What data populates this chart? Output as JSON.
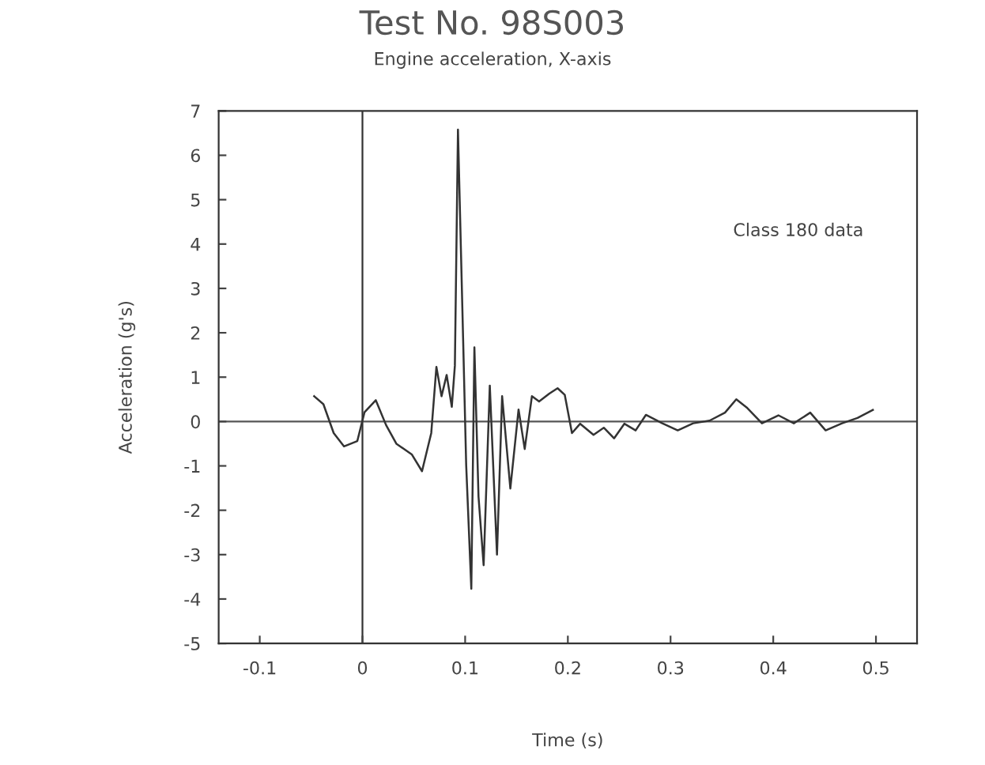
{
  "chart_data": {
    "type": "line",
    "title": "Test No. 98S003",
    "subtitle": "Engine acceleration, X-axis",
    "xlabel": "Time (s)",
    "ylabel": "Acceleration (g's)",
    "annotations": [
      "Class 180 data"
    ],
    "series": [
      {
        "color": "#333333",
        "x": [
          -0.047,
          -0.038,
          -0.028,
          -0.018,
          -0.005,
          0.002,
          0.013,
          0.023,
          0.033,
          0.048,
          0.058,
          0.067,
          0.072,
          0.077,
          0.082,
          0.087,
          0.09,
          0.093,
          0.098,
          0.101,
          0.106,
          0.109,
          0.113,
          0.118,
          0.124,
          0.131,
          0.136,
          0.144,
          0.152,
          0.158,
          0.165,
          0.172,
          0.182,
          0.19,
          0.197,
          0.204,
          0.212,
          0.225,
          0.235,
          0.245,
          0.255,
          0.266,
          0.276,
          0.292,
          0.307,
          0.322,
          0.338,
          0.353,
          0.364,
          0.374,
          0.389,
          0.405,
          0.42,
          0.436,
          0.451,
          0.467,
          0.482,
          0.497
        ],
        "values": [
          0.57,
          0.39,
          -0.26,
          -0.56,
          -0.44,
          0.21,
          0.48,
          -0.08,
          -0.5,
          -0.74,
          -1.12,
          -0.26,
          1.23,
          0.57,
          1.05,
          0.33,
          1.26,
          6.58,
          1.88,
          -0.98,
          -3.77,
          1.67,
          -1.69,
          -3.24,
          0.81,
          -3.0,
          0.57,
          -1.51,
          0.27,
          -0.62,
          0.57,
          0.45,
          0.63,
          0.75,
          0.6,
          -0.26,
          -0.05,
          -0.3,
          -0.14,
          -0.38,
          -0.05,
          -0.2,
          0.15,
          -0.04,
          -0.2,
          -0.04,
          0.02,
          0.2,
          0.5,
          0.32,
          -0.04,
          0.14,
          -0.04,
          0.2,
          -0.2,
          -0.04,
          0.08,
          0.26
        ]
      }
    ],
    "ref_lines": [
      {
        "axis": "x",
        "value": 0,
        "color": "#333333"
      },
      {
        "axis": "y",
        "value": 0,
        "color": "#555555"
      }
    ],
    "xlim": [
      -0.14,
      0.54
    ],
    "xticks": [
      -0.1,
      0,
      0.1,
      0.2,
      0.3,
      0.4,
      0.5
    ],
    "ylim": [
      -5,
      7
    ],
    "yticks": [
      -5,
      -4,
      -3,
      -2,
      -1,
      0,
      1,
      2,
      3,
      4,
      5,
      6,
      7
    ],
    "grid": false,
    "legend": false,
    "marker": "none",
    "line_style": "solid"
  }
}
